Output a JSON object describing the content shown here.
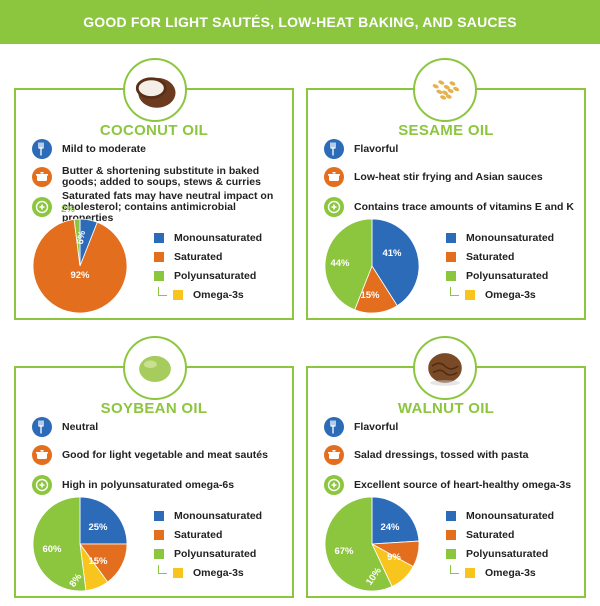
{
  "banner_title": "GOOD FOR LIGHT SAUTÉS, LOW-HEAT BAKING, AND SAUCES",
  "legend_labels": {
    "mono": "Monounsaturated",
    "sat": "Saturated",
    "poly": "Polyunsaturated",
    "omega": "Omega-3s"
  },
  "colors": {
    "mono": "#2b6bb8",
    "sat": "#e36f1e",
    "poly": "#8cc63f",
    "omega": "#f7c51e",
    "accent": "#8cc63f"
  },
  "icons": [
    "fork-icon",
    "pot-icon",
    "health-icon"
  ],
  "cards": [
    {
      "title": "COCONUT OIL",
      "image": "coconut-icon",
      "features": [
        "Mild to moderate",
        "Butter & shortening substitute in baked goods; added to soups, stews & curries",
        "Saturated fats may have neutral impact on cholesterol; contains antimicrobial properties"
      ]
    },
    {
      "title": "SESAME OIL",
      "image": "sesame-seeds-icon",
      "features": [
        "Flavorful",
        "Low-heat stir frying and Asian sauces",
        "Contains trace amounts of vitamins E and K"
      ]
    },
    {
      "title": "SOYBEAN OIL",
      "image": "soybean-icon",
      "features": [
        "Neutral",
        "Good for light vegetable and meat sautés",
        "High in polyunsaturated omega-6s"
      ]
    },
    {
      "title": "WALNUT OIL",
      "image": "walnut-icon",
      "features": [
        "Flavorful",
        "Salad dressings, tossed with pasta",
        "Excellent source of heart-healthy omega-3s"
      ]
    }
  ],
  "chart_data": [
    {
      "type": "pie",
      "slices": [
        {
          "key": "mono",
          "value": 6,
          "label": "6%"
        },
        {
          "key": "sat",
          "value": 92,
          "label": "92%"
        },
        {
          "key": "poly",
          "value": 2,
          "label": "2%"
        }
      ]
    },
    {
      "type": "pie",
      "slices": [
        {
          "key": "mono",
          "value": 41,
          "label": "41%"
        },
        {
          "key": "sat",
          "value": 15,
          "label": "15%"
        },
        {
          "key": "poly",
          "value": 44,
          "label": "44%"
        }
      ]
    },
    {
      "type": "pie",
      "slices": [
        {
          "key": "mono",
          "value": 25,
          "label": "25%"
        },
        {
          "key": "sat",
          "value": 15,
          "label": "15%"
        },
        {
          "key": "omega",
          "value": 8,
          "label": "8%"
        },
        {
          "key": "poly",
          "value": 52,
          "label": ""
        },
        {
          "key": "poly",
          "value": 0,
          "label": "60%"
        }
      ]
    },
    {
      "type": "pie",
      "slices": [
        {
          "key": "mono",
          "value": 24,
          "label": "24%"
        },
        {
          "key": "sat",
          "value": 9,
          "label": "9%"
        },
        {
          "key": "omega",
          "value": 10,
          "label": "10%"
        },
        {
          "key": "poly",
          "value": 57,
          "label": ""
        },
        {
          "key": "poly",
          "value": 0,
          "label": "67%"
        }
      ]
    }
  ]
}
